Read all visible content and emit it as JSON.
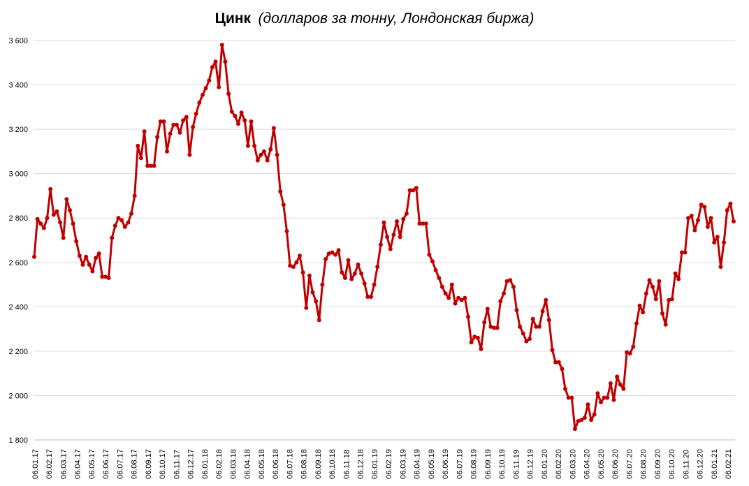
{
  "chart_data": {
    "type": "line",
    "title": "Цинк",
    "subtitle": "(долларов за тонну, Лондонская биржа)",
    "ylim": [
      1800,
      3600
    ],
    "y_ticks": [
      1800,
      2000,
      2200,
      2400,
      2600,
      2800,
      3000,
      3200,
      3400,
      3600
    ],
    "y_tick_labels": [
      "1 800",
      "2 000",
      "2 200",
      "2 400",
      "2 600",
      "2 800",
      "3 000",
      "3 200",
      "3 400",
      "3 600"
    ],
    "x_tick_labels": [
      "06.01.17",
      "06.02.17",
      "06.03.17",
      "06.04.17",
      "06.05.17",
      "06.06.17",
      "06.07.17",
      "06.08.17",
      "06.09.17",
      "06.10.17",
      "06.11.17",
      "06.12.17",
      "06.01.18",
      "06.02.18",
      "06.03.18",
      "06.04.18",
      "06.05.18",
      "06.06.18",
      "06.07.18",
      "06.08.18",
      "06.09.18",
      "06.10.18",
      "06.11.18",
      "06.12.18",
      "06.01.19",
      "06.02.19",
      "06.03.19",
      "06.04.19",
      "06.05.19",
      "06.06.19",
      "06.07.19",
      "06.08.19",
      "06.09.19",
      "06.10.19",
      "06.11.19",
      "06.12.19",
      "06.01.20",
      "06.02.20",
      "06.03.20",
      "06.04.20",
      "06.05.20",
      "06.06.20",
      "06.07.20",
      "06.08.20",
      "06.09.20",
      "06.10.20",
      "06.11.20",
      "06.12.20",
      "06.01.21",
      "06.02.21"
    ],
    "grid": true,
    "legend": "none",
    "series_color": "#c00000",
    "values": [
      2625,
      2795,
      2775,
      2755,
      2800,
      2930,
      2815,
      2830,
      2780,
      2710,
      2885,
      2835,
      2775,
      2695,
      2630,
      2590,
      2625,
      2590,
      2560,
      2620,
      2640,
      2535,
      2535,
      2530,
      2710,
      2765,
      2800,
      2790,
      2760,
      2780,
      2820,
      2900,
      3125,
      3070,
      3190,
      3035,
      3035,
      3035,
      3165,
      3235,
      3235,
      3100,
      3180,
      3220,
      3220,
      3185,
      3240,
      3255,
      3085,
      3210,
      3270,
      3320,
      3355,
      3385,
      3420,
      3480,
      3505,
      3390,
      3580,
      3505,
      3360,
      3280,
      3260,
      3225,
      3275,
      3240,
      3125,
      3235,
      3125,
      3060,
      3085,
      3100,
      3060,
      3110,
      3205,
      3085,
      2920,
      2860,
      2740,
      2585,
      2580,
      2600,
      2630,
      2555,
      2395,
      2540,
      2465,
      2425,
      2340,
      2500,
      2615,
      2640,
      2645,
      2635,
      2655,
      2555,
      2530,
      2610,
      2525,
      2550,
      2590,
      2550,
      2505,
      2445,
      2445,
      2500,
      2580,
      2680,
      2780,
      2715,
      2660,
      2725,
      2785,
      2715,
      2795,
      2820,
      2925,
      2925,
      2935,
      2775,
      2775,
      2775,
      2635,
      2605,
      2565,
      2530,
      2490,
      2460,
      2440,
      2500,
      2415,
      2440,
      2430,
      2440,
      2355,
      2240,
      2265,
      2260,
      2210,
      2330,
      2390,
      2310,
      2305,
      2305,
      2425,
      2460,
      2515,
      2520,
      2490,
      2385,
      2310,
      2280,
      2245,
      2255,
      2345,
      2310,
      2310,
      2380,
      2430,
      2340,
      2205,
      2150,
      2150,
      2120,
      2030,
      1990,
      1990,
      1850,
      1885,
      1890,
      1900,
      1960,
      1890,
      1915,
      2010,
      1970,
      1990,
      1990,
      2055,
      1980,
      2085,
      2050,
      2030,
      2195,
      2190,
      2220,
      2325,
      2405,
      2375,
      2460,
      2520,
      2490,
      2435,
      2515,
      2370,
      2320,
      2430,
      2435,
      2550,
      2525,
      2645,
      2645,
      2800,
      2810,
      2745,
      2790,
      2860,
      2850,
      2760,
      2800,
      2690,
      2715,
      2580,
      2690,
      2835,
      2865,
      2785
    ]
  }
}
